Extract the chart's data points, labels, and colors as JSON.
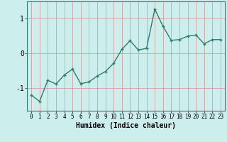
{
  "x": [
    0,
    1,
    2,
    3,
    4,
    5,
    6,
    7,
    8,
    9,
    10,
    11,
    12,
    13,
    14,
    15,
    16,
    17,
    18,
    19,
    20,
    21,
    22,
    23
  ],
  "y": [
    -1.2,
    -1.38,
    -0.77,
    -0.88,
    -0.62,
    -0.45,
    -0.87,
    -0.82,
    -0.65,
    -0.52,
    -0.28,
    0.12,
    0.37,
    0.1,
    0.15,
    1.28,
    0.78,
    0.38,
    0.4,
    0.5,
    0.53,
    0.28,
    0.4,
    0.4
  ],
  "line_color": "#2d7d6e",
  "marker": "+",
  "marker_size": 3,
  "linewidth": 1.0,
  "xlabel": "Humidex (Indice chaleur)",
  "xlabel_fontsize": 7,
  "bg_color": "#cceeed",
  "grid_color": "#d4a0a0",
  "yticks": [
    -1,
    0,
    1
  ],
  "xticks": [
    0,
    1,
    2,
    3,
    4,
    5,
    6,
    7,
    8,
    9,
    10,
    11,
    12,
    13,
    14,
    15,
    16,
    17,
    18,
    19,
    20,
    21,
    22,
    23
  ],
  "ylim": [
    -1.65,
    1.5
  ],
  "xlim": [
    -0.5,
    23.5
  ],
  "tick_fontsize": 5.5,
  "ytick_fontsize": 7
}
